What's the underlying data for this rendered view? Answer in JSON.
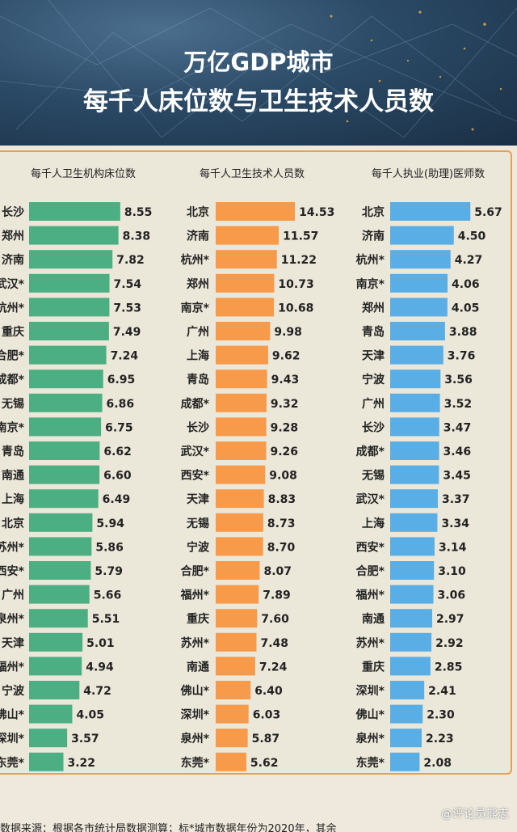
{
  "title": {
    "line1": "万亿GDP城市",
    "line2": "每千人床位数与卫生技术人员数"
  },
  "footer": "数据来源：根据各市统计局数据测算；标*城市数据年份为2020年，其余",
  "watermark": "@评论员熊志",
  "colors": {
    "green": "#4caf83",
    "orange": "#f79a4a",
    "blue": "#5aaee6",
    "panel_border": "#e8a050"
  },
  "chart_data": [
    {
      "type": "bar",
      "orientation": "horizontal",
      "title": "每千人卫生机构床位数",
      "color": "#4caf83",
      "categories": [
        "长沙",
        "郑州",
        "济南",
        "武汉*",
        "杭州*",
        "重庆",
        "合肥*",
        "成都*",
        "无锡",
        "南京*",
        "青岛",
        "南通",
        "上海",
        "北京",
        "苏州*",
        "西安*",
        "广州",
        "泉州*",
        "天津",
        "福州*",
        "宁波",
        "佛山*",
        "深圳*",
        "东莞*"
      ],
      "values": [
        8.55,
        8.38,
        7.82,
        7.54,
        7.53,
        7.49,
        7.24,
        6.95,
        6.86,
        6.75,
        6.62,
        6.6,
        6.49,
        5.94,
        5.86,
        5.79,
        5.66,
        5.51,
        5.01,
        4.94,
        4.72,
        4.05,
        3.57,
        3.22
      ],
      "value_labels": [
        "8.55",
        "8.38",
        "7.82",
        "7.54",
        "7.53",
        "7.49",
        "7.24",
        "6.95",
        "6.86",
        "6.75",
        "6.62",
        "6.60",
        "6.49",
        "5.94",
        "5.86",
        "5.79",
        "5.66",
        "5.51",
        "5.01",
        "4.94",
        "4.72",
        "4.05",
        "3.57",
        "3.22"
      ]
    },
    {
      "type": "bar",
      "orientation": "horizontal",
      "title": "每千人卫生技术人员数",
      "color": "#f79a4a",
      "categories": [
        "北京",
        "济南",
        "杭州*",
        "郑州",
        "南京*",
        "广州",
        "上海",
        "青岛",
        "成都*",
        "长沙",
        "武汉*",
        "西安*",
        "天津",
        "无锡",
        "宁波",
        "合肥*",
        "福州*",
        "重庆",
        "苏州*",
        "南通",
        "佛山*",
        "深圳*",
        "泉州*",
        "东莞*"
      ],
      "values": [
        14.53,
        11.57,
        11.22,
        10.73,
        10.68,
        9.98,
        9.62,
        9.43,
        9.32,
        9.28,
        9.26,
        9.08,
        8.83,
        8.73,
        8.7,
        8.07,
        7.89,
        7.6,
        7.48,
        7.24,
        6.4,
        6.03,
        5.87,
        5.62
      ],
      "value_labels": [
        "14.53",
        "11.57",
        "11.22",
        "10.73",
        "10.68",
        "9.98",
        "9.62",
        "9.43",
        "9.32",
        "9.28",
        "9.26",
        "9.08",
        "8.83",
        "8.73",
        "8.70",
        "8.07",
        "7.89",
        "7.60",
        "7.48",
        "7.24",
        "6.40",
        "6.03",
        "5.87",
        "5.62"
      ]
    },
    {
      "type": "bar",
      "orientation": "horizontal",
      "title": "每千人执业(助理)医师数",
      "color": "#5aaee6",
      "categories": [
        "北京",
        "济南",
        "杭州*",
        "南京*",
        "郑州",
        "青岛",
        "天津",
        "宁波",
        "广州",
        "长沙",
        "成都*",
        "无锡",
        "武汉*",
        "上海",
        "西安*",
        "合肥*",
        "福州*",
        "南通",
        "苏州*",
        "重庆",
        "深圳*",
        "佛山*",
        "泉州*",
        "东莞*"
      ],
      "values": [
        5.67,
        4.5,
        4.27,
        4.06,
        4.05,
        3.88,
        3.76,
        3.56,
        3.52,
        3.47,
        3.46,
        3.45,
        3.37,
        3.34,
        3.14,
        3.1,
        3.06,
        2.97,
        2.92,
        2.85,
        2.41,
        2.3,
        2.23,
        2.08
      ],
      "value_labels": [
        "5.67",
        "4.50",
        "4.27",
        "4.06",
        "4.05",
        "3.88",
        "3.76",
        "3.56",
        "3.52",
        "3.47",
        "3.46",
        "3.45",
        "3.37",
        "3.34",
        "3.14",
        "3.10",
        "3.06",
        "2.97",
        "2.92",
        "2.85",
        "2.41",
        "2.30",
        "2.23",
        "2.08"
      ]
    }
  ]
}
